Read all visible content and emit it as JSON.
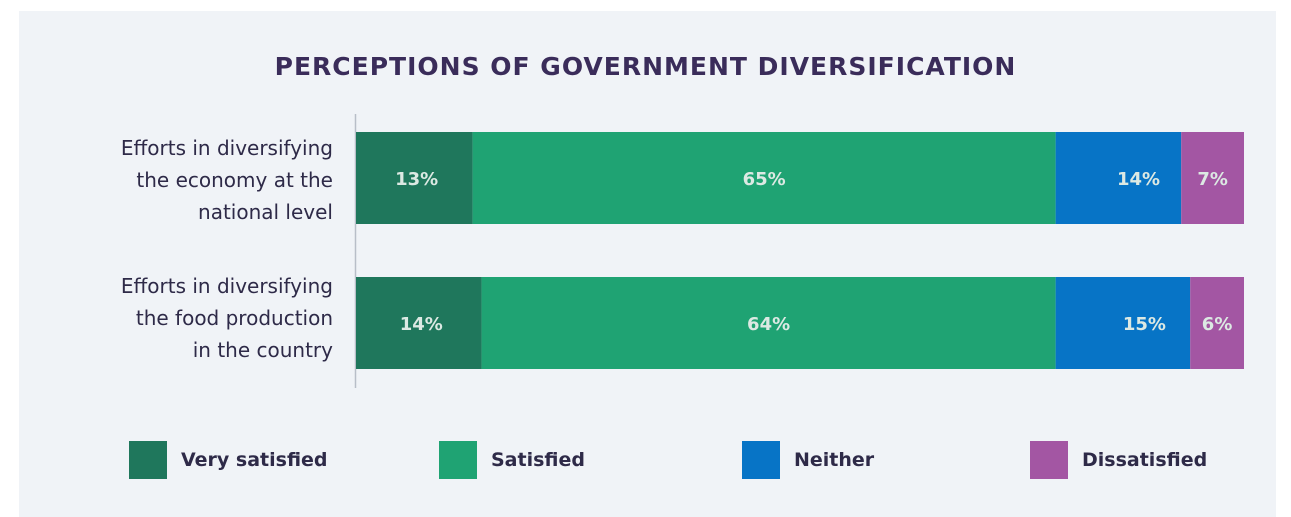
{
  "chart_data": {
    "type": "bar",
    "orientation": "horizontal",
    "stacked": true,
    "title": "PERCEPTIONS OF GOVERNMENT DIVERSIFICATION",
    "categories": [
      [
        "Efforts in diversifying",
        "the economy at the",
        "national level"
      ],
      [
        "Efforts in diversifying",
        "the food production",
        "in the country"
      ]
    ],
    "series": [
      {
        "name": "Very satisfied",
        "color": "#1f775c",
        "values": [
          13,
          14
        ]
      },
      {
        "name": "Satisfied",
        "color": "#1fa373",
        "values": [
          65,
          64
        ]
      },
      {
        "name": "Neither",
        "color": "#0774c6",
        "values": [
          14,
          15
        ]
      },
      {
        "name": "Dissatisfied",
        "color": "#a356a3",
        "values": [
          7,
          6
        ]
      }
    ],
    "value_suffix": "%",
    "legend_position": "bottom",
    "label_color": "#dce9e3"
  }
}
